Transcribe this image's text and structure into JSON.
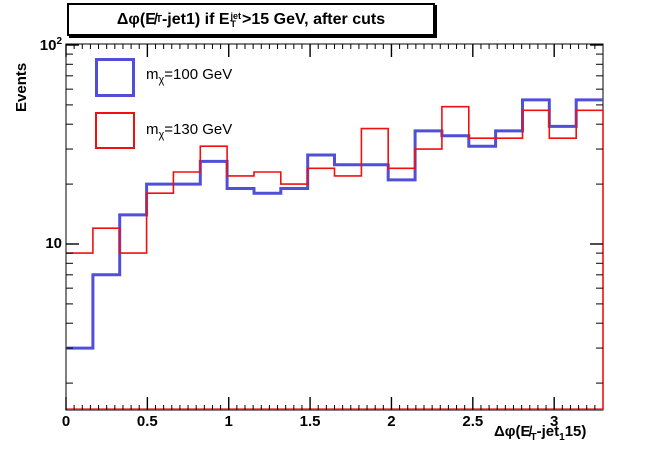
{
  "colors": {
    "blue": "#4f4fd8",
    "red": "#f01010",
    "frame": "#000000",
    "background": "#ffffff"
  },
  "title_box": {
    "pre": "Δφ(",
    "met": "E̸",
    "met_sub": "T",
    "mid": "-jet1) if E",
    "jet_sup": "jet",
    "jet_sub": "T",
    "post": ">15 GeV, after cuts"
  },
  "y_axis": {
    "label": "Events",
    "tick_100_base": "10",
    "tick_100_exp": "2",
    "tick_10": "10"
  },
  "x_axis": {
    "label_pre": "Δφ(",
    "label_met": "E̸",
    "label_met_sub": "T",
    "label_mid": "-jet",
    "label_jet_sub": "1",
    "label_post": "15)"
  },
  "legend": {
    "entries": [
      {
        "prefix": "m",
        "sub": "χ",
        "suffix": "=100 GeV"
      },
      {
        "prefix": "m",
        "sub": "χ",
        "suffix": "=130 GeV"
      }
    ]
  },
  "chart_data": {
    "type": "step-histogram",
    "title": "Δφ(E̸_T-jet1) if E_T^jet>15 GeV, after cuts",
    "xlabel": "Δφ(E̸_T-jet_1 15)",
    "ylabel": "Events",
    "x_min": 0,
    "x_max": 3.3,
    "n_bins": 20,
    "bin_width": 0.165,
    "y_scale": "log",
    "y_min": 1.5,
    "y_max": 100,
    "grid": false,
    "legend_position": "top-left",
    "x_ticks": [
      {
        "v": 0,
        "label": "0"
      },
      {
        "v": 0.5,
        "label": "0.5"
      },
      {
        "v": 1,
        "label": "1"
      },
      {
        "v": 1.5,
        "label": "1.5"
      },
      {
        "v": 2,
        "label": "2"
      },
      {
        "v": 2.5,
        "label": "2.5"
      },
      {
        "v": 3,
        "label": "3"
      }
    ],
    "x_minor_step": 0.05,
    "y_major_ticks": [
      10,
      100
    ],
    "series": [
      {
        "name": "m_χ=100 GeV",
        "color": "#4f4fd8",
        "line_width": 3,
        "closes_to_axis": false,
        "values": [
          3,
          7,
          14,
          20,
          20,
          26,
          19,
          18,
          19,
          28,
          25,
          25,
          21,
          37,
          35,
          31,
          37,
          53,
          39,
          53
        ]
      },
      {
        "name": "m_χ=130 GeV",
        "color": "#f01010",
        "line_width": 1.6,
        "closes_to_axis": true,
        "values": [
          9,
          12,
          9,
          18,
          23,
          31,
          22,
          23,
          20,
          24,
          22,
          38,
          24,
          30,
          49,
          34,
          34,
          47,
          34,
          47
        ]
      }
    ]
  }
}
